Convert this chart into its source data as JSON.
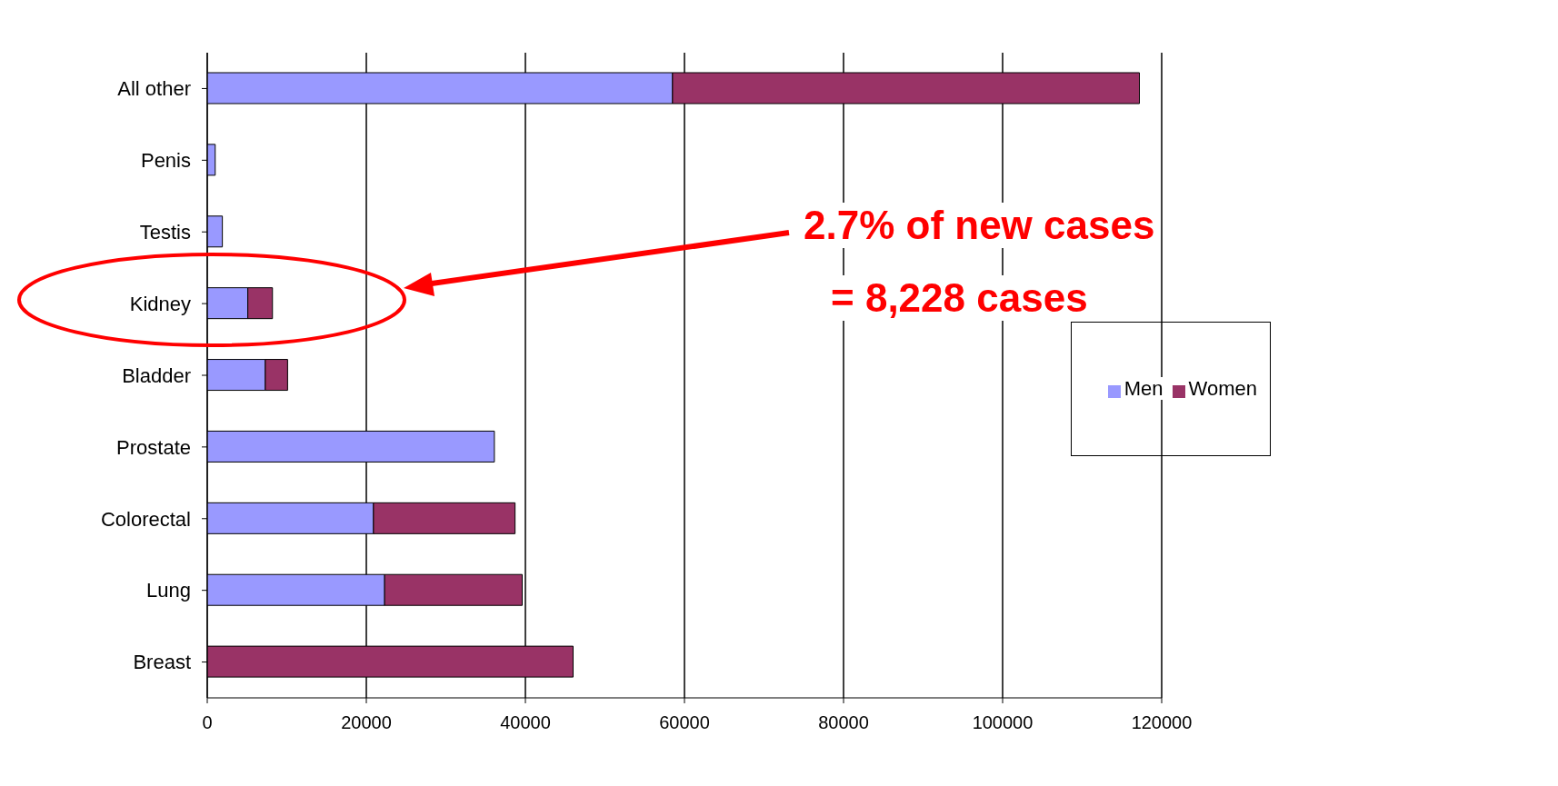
{
  "chart_data": {
    "type": "bar",
    "orientation": "horizontal",
    "stacked": true,
    "categories": [
      "All other",
      "Penis",
      "Testis",
      "Kidney",
      "Bladder",
      "Prostate",
      "Colorectal",
      "Lung",
      "Breast"
    ],
    "series": [
      {
        "name": "Men",
        "color": "#9999ff",
        "values": [
          58500,
          1000,
          1900,
          5100,
          7300,
          36100,
          20900,
          22300,
          null
        ]
      },
      {
        "name": "Women",
        "color": "#993366",
        "values": [
          58700,
          null,
          null,
          3100,
          2800,
          null,
          17800,
          17300,
          46000
        ]
      }
    ],
    "xlim": [
      0,
      120000
    ],
    "xticks": [
      0,
      20000,
      40000,
      60000,
      80000,
      100000,
      120000
    ],
    "grid": "x",
    "legend": "right",
    "annotations": [
      "2.7% of new cases",
      "= 8,228 cases"
    ]
  }
}
